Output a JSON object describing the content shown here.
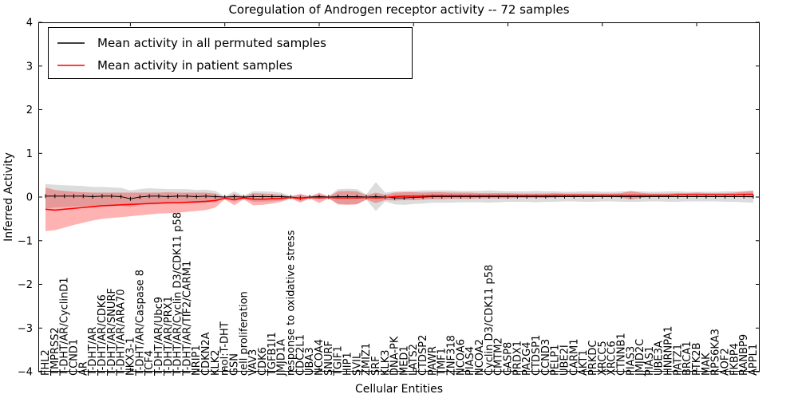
{
  "chart_data": {
    "type": "line",
    "title": "Coregulation of Androgen receptor activity -- 72 samples",
    "xlabel": "Cellular Entities",
    "ylabel": "Inferred Activity",
    "ylim": [
      -4,
      4
    ],
    "yticks": [
      4,
      3,
      2,
      1,
      0,
      -1,
      -2,
      -3,
      -4
    ],
    "ytick_labels": [
      "4",
      "3",
      "2",
      "1",
      "0",
      "−1",
      "−2",
      "−3",
      "−4"
    ],
    "xtick_mark_indices": [
      9,
      19,
      29,
      39,
      49,
      59,
      69
    ],
    "grid": false,
    "legend_position": "upper left",
    "categories": [
      "FHL2",
      "TMPRSS2",
      "T-DHT/AR/CyclinD1",
      "CCND1",
      "AR",
      "T-DHT/AR",
      "T-DHT/AR/CDK6",
      "T-DHT/AR/SNURF",
      "T-DHT/AR/ARA70",
      "NKX3-1",
      "T-DHT/AR/Caspase 8",
      "TCF4",
      "T-DHT/AR/Ubc9",
      "T-DHT/AR/PRX1",
      "T-DHT/AR/Cyclin D3/CDK11 p58",
      "T-DHT/AR/TIF2/CARM1",
      "NRIP1",
      "CDKN2A",
      "KLK2",
      "mol:T-DHT",
      "GSN",
      "cell proliferation",
      "VAV3",
      "CDK6",
      "TGFB1I1",
      "JMJD1A",
      "response to oxidative stress",
      "CDC2L1",
      "UBA3",
      "NCOA4",
      "SNURF",
      "TGIF1",
      "HIP1",
      "SVIL",
      "ZMIZ1",
      "SRF",
      "KLK3",
      "DNA-PK",
      "MED1",
      "LATS2",
      "CTDSP2",
      "PAWR",
      "TMF1",
      "ZNF318",
      "NCOA6",
      "PIAS4",
      "NCOA2",
      "Cyclin D3/CDK11 p58",
      "CMTM2",
      "CASP8",
      "PRDX1",
      "PA2G4",
      "CTDSP1",
      "CCND3",
      "PELP1",
      "UBE2I",
      "CARM1",
      "AKT1",
      "PRKDC",
      "XRCC5",
      "XRCC6",
      "CTNNB1",
      "PIAS3",
      "JMJD2C",
      "PIAS1",
      "UBE3A",
      "HNRNPA1",
      "PATZ1",
      "BRCA1",
      "PTK2B",
      "MAK",
      "RPS6KA3",
      "AOF2",
      "FKBP4",
      "RANBP9",
      "APPL1"
    ],
    "series": [
      {
        "name": "Mean activity in all permuted samples",
        "color": "#000000",
        "line_width": 1,
        "marker": "|",
        "band_color": "#9a9a9a",
        "band_opacity": 0.35,
        "values": [
          0.02,
          0.02,
          0.02,
          0.02,
          0.02,
          0.01,
          0.02,
          0.02,
          0.01,
          -0.04,
          0.0,
          0.02,
          0.02,
          0.01,
          0.02,
          0.02,
          0.01,
          0.02,
          0.01,
          0.0,
          0.01,
          0.0,
          0.01,
          0.01,
          0.01,
          0.01,
          0.0,
          -0.02,
          0.0,
          0.01,
          0.0,
          0.01,
          0.01,
          0.01,
          0.0,
          0.01,
          0.0,
          -0.02,
          -0.02,
          -0.01,
          0.0,
          0.01,
          0.01,
          0.01,
          0.01,
          0.01,
          0.01,
          0.01,
          0.01,
          0.01,
          0.01,
          0.01,
          0.01,
          0.01,
          0.01,
          0.01,
          0.01,
          0.01,
          0.01,
          0.01,
          0.01,
          0.01,
          0.01,
          0.01,
          0.01,
          0.01,
          0.01,
          0.01,
          0.01,
          0.01,
          0.01,
          0.01,
          0.01,
          0.01,
          0.01,
          0.01
        ],
        "band_halfwidth": [
          0.28,
          0.26,
          0.25,
          0.24,
          0.23,
          0.22,
          0.21,
          0.2,
          0.2,
          0.19,
          0.18,
          0.18,
          0.17,
          0.17,
          0.16,
          0.16,
          0.15,
          0.15,
          0.13,
          0.02,
          0.12,
          0.03,
          0.12,
          0.12,
          0.11,
          0.09,
          0.02,
          0.08,
          0.02,
          0.05,
          0.02,
          0.17,
          0.18,
          0.17,
          0.06,
          0.33,
          0.1,
          0.15,
          0.16,
          0.15,
          0.15,
          0.14,
          0.14,
          0.14,
          0.13,
          0.13,
          0.13,
          0.14,
          0.13,
          0.12,
          0.12,
          0.12,
          0.13,
          0.12,
          0.12,
          0.11,
          0.11,
          0.12,
          0.12,
          0.11,
          0.11,
          0.12,
          0.12,
          0.12,
          0.11,
          0.11,
          0.12,
          0.12,
          0.11,
          0.11,
          0.11,
          0.11,
          0.12,
          0.12,
          0.13,
          0.14
        ]
      },
      {
        "name": "Mean activity in patient samples",
        "color": "#ff0000",
        "line_width": 1.6,
        "marker": "none",
        "band_color": "#ff0000",
        "band_opacity": 0.3,
        "values": [
          -0.28,
          -0.3,
          -0.28,
          -0.26,
          -0.24,
          -0.22,
          -0.2,
          -0.19,
          -0.18,
          -0.17,
          -0.16,
          -0.15,
          -0.14,
          -0.13,
          -0.13,
          -0.12,
          -0.11,
          -0.1,
          -0.08,
          -0.03,
          -0.06,
          -0.02,
          -0.05,
          -0.05,
          -0.04,
          -0.03,
          -0.01,
          -0.03,
          -0.01,
          -0.02,
          -0.01,
          -0.02,
          -0.02,
          -0.02,
          -0.01,
          -0.02,
          -0.01,
          0.01,
          0.02,
          0.02,
          0.02,
          0.03,
          0.03,
          0.03,
          0.03,
          0.03,
          0.03,
          0.03,
          0.03,
          0.03,
          0.03,
          0.03,
          0.03,
          0.03,
          0.04,
          0.04,
          0.04,
          0.04,
          0.04,
          0.04,
          0.04,
          0.04,
          0.04,
          0.04,
          0.04,
          0.04,
          0.04,
          0.05,
          0.05,
          0.05,
          0.05,
          0.05,
          0.05,
          0.05,
          0.06,
          0.06
        ],
        "band_halfwidth": [
          0.5,
          0.46,
          0.42,
          0.38,
          0.35,
          0.32,
          0.3,
          0.29,
          0.28,
          0.27,
          0.26,
          0.25,
          0.24,
          0.24,
          0.23,
          0.22,
          0.21,
          0.2,
          0.16,
          0.02,
          0.13,
          0.03,
          0.14,
          0.13,
          0.11,
          0.08,
          0.02,
          0.1,
          0.02,
          0.12,
          0.02,
          0.15,
          0.16,
          0.15,
          0.05,
          0.12,
          0.06,
          0.09,
          0.09,
          0.09,
          0.08,
          0.08,
          0.08,
          0.07,
          0.07,
          0.07,
          0.06,
          0.06,
          0.06,
          0.06,
          0.05,
          0.05,
          0.05,
          0.05,
          0.05,
          0.04,
          0.04,
          0.04,
          0.04,
          0.04,
          0.04,
          0.05,
          0.1,
          0.06,
          0.04,
          0.04,
          0.04,
          0.04,
          0.04,
          0.05,
          0.04,
          0.04,
          0.04,
          0.05,
          0.06,
          0.08
        ]
      }
    ]
  }
}
